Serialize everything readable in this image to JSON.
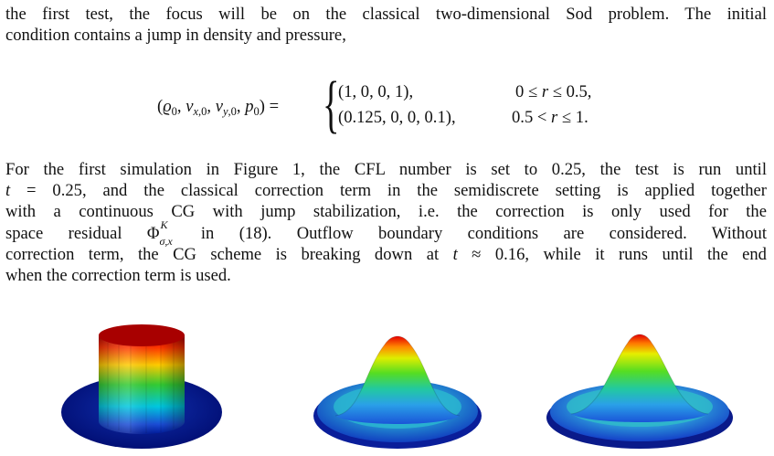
{
  "intro": {
    "line1": "the first test, the focus will be on the classical two-dimensional Sod problem. The initial",
    "line2": "condition contains a jump in density and pressure,"
  },
  "equation": {
    "lhs": "(ϱ₀, v𝑥,₀, v𝑦,₀, p₀) =",
    "case1_value": "(1, 0, 0, 1),",
    "case1_condition": "0 ≤ r ≤ 0.5,",
    "case2_value": "(0.125, 0, 0, 0.1),",
    "case2_condition": "0.5 < r ≤ 1."
  },
  "body": {
    "line1": "For the first simulation in Figure 1, the CFL number is set to 0.25, the test is run until",
    "line2": "t = 0.25, and the classical correction term in the semidiscrete setting is applied together",
    "line3": "with a continuous CG with jump stabilization, i.e. the correction is only used for the",
    "line4_pre": "space residual Φ",
    "line4_sup": "K",
    "line4_sub": "σ,x",
    "line4_post": " in (18). Outflow boundary conditions are considered. Without",
    "line5": "correction term, the CG scheme is breaking down at t ≈ 0.16, while it runs until the end",
    "line6": "when the correction term is used."
  },
  "figures": [
    {
      "name": "initial-condition-plot"
    },
    {
      "name": "cg-solution-plot"
    },
    {
      "name": "corrected-solution-plot"
    }
  ]
}
